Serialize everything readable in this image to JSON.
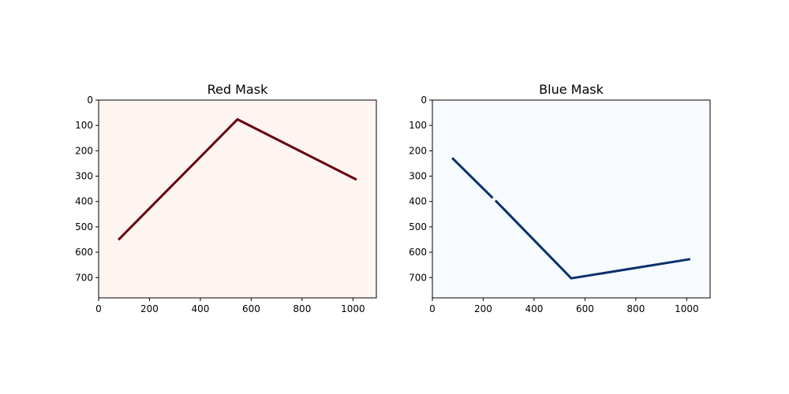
{
  "colors": {
    "red_panel_bg": "#fff5f0",
    "red_line": "#67000d",
    "blue_panel_bg": "#f7fbff",
    "blue_line": "#08306b",
    "axis": "#000000"
  },
  "chart_data": [
    {
      "type": "line",
      "title": "Red Mask",
      "xlim": [
        0,
        1092
      ],
      "ylim": [
        0,
        780
      ],
      "y_inverted": true,
      "xticks": [
        "0",
        "200",
        "400",
        "600",
        "800",
        "1000"
      ],
      "yticks": [
        "0",
        "100",
        "200",
        "300",
        "400",
        "500",
        "600",
        "700"
      ],
      "grid": false,
      "series": [
        {
          "segments": [
            [
              [
                78,
                551
              ],
              [
                546,
                76
              ],
              [
                1014,
                314
              ]
            ]
          ]
        }
      ]
    },
    {
      "type": "line",
      "title": "Blue Mask",
      "xlim": [
        0,
        1092
      ],
      "ylim": [
        0,
        780
      ],
      "y_inverted": true,
      "xticks": [
        "0",
        "200",
        "400",
        "600",
        "800",
        "1000"
      ],
      "yticks": [
        "0",
        "100",
        "200",
        "300",
        "400",
        "500",
        "600",
        "700"
      ],
      "grid": false,
      "series": [
        {
          "segments": [
            [
              [
                78,
                228
              ],
              [
                237,
                386
              ]
            ],
            [
              [
                248,
                396
              ],
              [
                546,
                703
              ],
              [
                1014,
                627
              ]
            ]
          ]
        }
      ]
    }
  ]
}
